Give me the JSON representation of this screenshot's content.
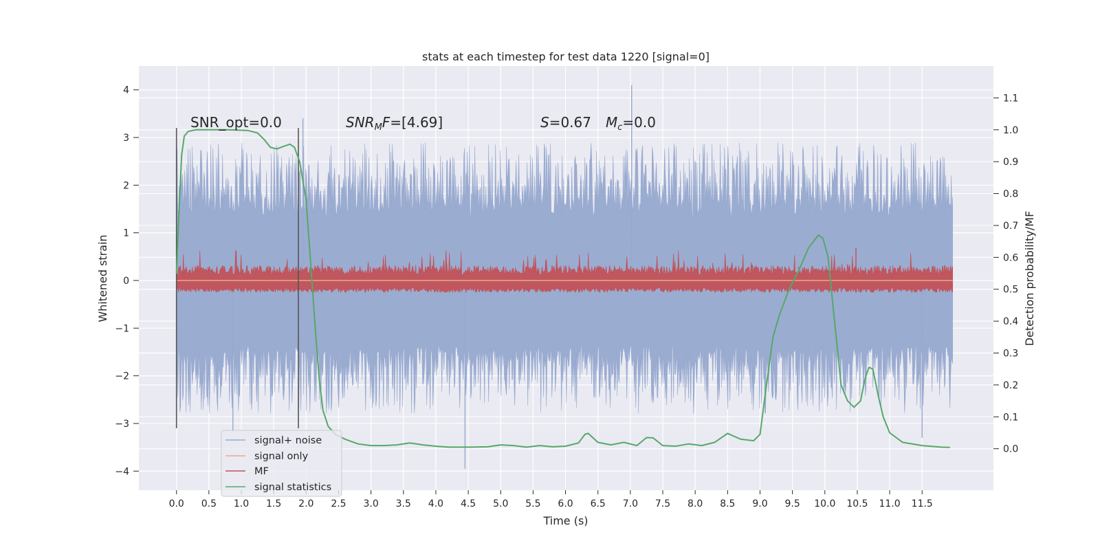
{
  "chart_data": {
    "type": "line",
    "title": "stats at each timestep for test data 1220 [signal=0]",
    "xlabel": "Time (s)",
    "ylabel": "Whitened strain",
    "y2label": "Detection probability/MF",
    "xlim": [
      -0.58,
      12.6
    ],
    "ylim": [
      -4.4,
      4.5
    ],
    "y2lim": [
      -0.13,
      1.2
    ],
    "xticks": [
      0.0,
      0.5,
      1.0,
      1.5,
      2.0,
      2.5,
      3.0,
      3.5,
      4.0,
      4.5,
      5.0,
      5.5,
      6.0,
      6.5,
      7.0,
      7.5,
      8.0,
      8.5,
      9.0,
      9.5,
      10.0,
      10.5,
      11.0,
      11.5
    ],
    "xtick_labels": [
      "0.0",
      "0.5",
      "1.0",
      "1.5",
      "2.0",
      "2.5",
      "3.0",
      "3.5",
      "4.0",
      "4.5",
      "5.0",
      "5.5",
      "6.0",
      "6.5",
      "7.0",
      "7.5",
      "8.0",
      "8.5",
      "9.0",
      "9.5",
      "10.0",
      "10.5",
      "11.0",
      "11.5"
    ],
    "yticks": [
      -4,
      -3,
      -2,
      -1,
      0,
      1,
      2,
      3,
      4
    ],
    "ytick_labels": [
      "−4",
      "−3",
      "−2",
      "−1",
      "0",
      "1",
      "2",
      "3",
      "4"
    ],
    "y2ticks": [
      0.0,
      0.1,
      0.2,
      0.3,
      0.4,
      0.5,
      0.6,
      0.7,
      0.8,
      0.9,
      1.0,
      1.1
    ],
    "y2tick_labels": [
      "0.0",
      "0.1",
      "0.2",
      "0.3",
      "0.4",
      "0.5",
      "0.6",
      "0.7",
      "0.8",
      "0.9",
      "1.0",
      "1.1"
    ],
    "grid": true,
    "legend_position": "lower-left",
    "series": [
      {
        "name": "signal+ noise",
        "axis": "left",
        "color": "#97a9cf",
        "x_range": [
          0.0,
          11.98
        ],
        "typical_range": [
          -1.8,
          2.0
        ],
        "extremes": [
          {
            "x": 0.87,
            "y": -3.2
          },
          {
            "x": 1.95,
            "y": 3.4
          },
          {
            "x": 4.45,
            "y": -3.95
          },
          {
            "x": 7.02,
            "y": 4.1
          },
          {
            "x": 11.5,
            "y": -3.3
          }
        ]
      },
      {
        "name": "signal only",
        "axis": "left",
        "color": "#e9a98c",
        "x": [
          0.0,
          11.98
        ],
        "y": [
          0.0,
          0.0
        ]
      },
      {
        "name": "MF",
        "axis": "right",
        "color": "#c44e52",
        "x_range": [
          0.0,
          11.98
        ],
        "typical_range": [
          0.5,
          0.56
        ],
        "min": 0.49,
        "max": 0.63
      },
      {
        "name": "signal statistics",
        "axis": "right",
        "color": "#55a868",
        "x": [
          0.0,
          0.04,
          0.08,
          0.12,
          0.18,
          0.3,
          0.5,
          0.8,
          1.1,
          1.25,
          1.35,
          1.45,
          1.55,
          1.65,
          1.75,
          1.82,
          1.9,
          2.0,
          2.08,
          2.15,
          2.2,
          2.26,
          2.34,
          2.45,
          2.6,
          2.8,
          3.0,
          3.2,
          3.4,
          3.6,
          3.8,
          4.0,
          4.2,
          4.5,
          4.8,
          5.0,
          5.2,
          5.4,
          5.6,
          5.8,
          6.0,
          6.2,
          6.3,
          6.35,
          6.5,
          6.7,
          6.9,
          7.1,
          7.25,
          7.35,
          7.5,
          7.7,
          7.9,
          8.1,
          8.3,
          8.5,
          8.7,
          8.9,
          9.0,
          9.1,
          9.2,
          9.3,
          9.45,
          9.6,
          9.75,
          9.9,
          9.97,
          10.05,
          10.15,
          10.25,
          10.35,
          10.45,
          10.55,
          10.62,
          10.68,
          10.74,
          10.82,
          10.9,
          11.0,
          11.2,
          11.5,
          11.8,
          11.93
        ],
        "y": [
          0.55,
          0.75,
          0.92,
          0.98,
          0.995,
          1.0,
          1.0,
          1.0,
          0.998,
          0.99,
          0.97,
          0.945,
          0.94,
          0.948,
          0.955,
          0.945,
          0.9,
          0.78,
          0.55,
          0.35,
          0.22,
          0.12,
          0.07,
          0.045,
          0.03,
          0.015,
          0.01,
          0.01,
          0.012,
          0.018,
          0.012,
          0.008,
          0.005,
          0.005,
          0.006,
          0.012,
          0.01,
          0.005,
          0.01,
          0.006,
          0.008,
          0.018,
          0.045,
          0.048,
          0.02,
          0.012,
          0.02,
          0.01,
          0.035,
          0.034,
          0.01,
          0.008,
          0.015,
          0.01,
          0.02,
          0.048,
          0.03,
          0.025,
          0.045,
          0.2,
          0.35,
          0.42,
          0.5,
          0.56,
          0.63,
          0.67,
          0.66,
          0.6,
          0.4,
          0.2,
          0.15,
          0.13,
          0.15,
          0.22,
          0.255,
          0.25,
          0.17,
          0.1,
          0.05,
          0.02,
          0.01,
          0.005,
          0.004
        ]
      }
    ],
    "vertical_lines": [
      {
        "x": 0.0,
        "ymin": -3.1,
        "ymax": 3.2,
        "color": "#555555"
      },
      {
        "x": 1.88,
        "ymin": -3.1,
        "ymax": 3.2,
        "color": "#555555"
      }
    ],
    "annotations": [
      {
        "id": "snr_opt",
        "text": "SNR_opt=0.0",
        "x": 0.2,
        "y": 3.2
      },
      {
        "id": "snr_mf",
        "text": "SNR_MF=[4.69]",
        "x": 2.6,
        "y": 3.2
      },
      {
        "id": "s_mc",
        "text": "S=0.67   M_c=0.0",
        "x": 5.6,
        "y": 3.2
      }
    ]
  },
  "annotation_parts": {
    "snr_opt": "SNR_opt=0.0",
    "snr_mf_main": "SNR",
    "snr_mf_sub": "M",
    "snr_mf_f": "F",
    "snr_mf_value": "=[4.69]",
    "s_label": "S",
    "s_value": "=0.67",
    "mc_main": "M",
    "mc_sub": "c",
    "mc_value": "=0.0"
  },
  "legend": [
    {
      "label": "signal+ noise",
      "color": "#97a9cf"
    },
    {
      "label": "signal only",
      "color": "#e9a98c"
    },
    {
      "label": "MF",
      "color": "#c44e52"
    },
    {
      "label": "signal statistics",
      "color": "#55a868"
    }
  ]
}
